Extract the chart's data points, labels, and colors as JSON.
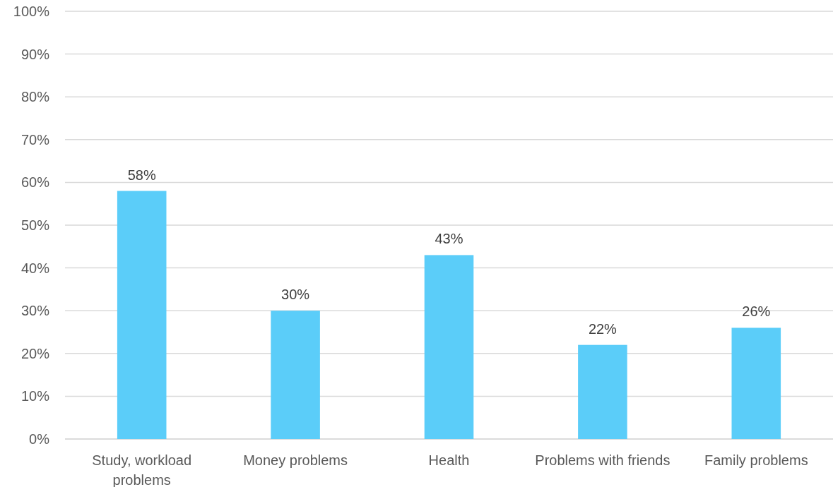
{
  "chart_data": {
    "type": "bar",
    "categories": [
      "Study, workload\nproblems",
      "Money problems",
      "Health",
      "Problems with friends",
      "Family problems"
    ],
    "values": [
      58,
      30,
      43,
      22,
      26
    ],
    "color": "#5bcdf9",
    "value_labels": [
      "58%",
      "30%",
      "43%",
      "22%",
      "26%"
    ],
    "ylim": [
      0,
      100
    ],
    "yticks": [
      {
        "value": 0,
        "label": "0%"
      },
      {
        "value": 10,
        "label": "10%"
      },
      {
        "value": 20,
        "label": "20%"
      },
      {
        "value": 30,
        "label": "30%"
      },
      {
        "value": 40,
        "label": "40%"
      },
      {
        "value": 50,
        "label": "50%"
      },
      {
        "value": 60,
        "label": "60%"
      },
      {
        "value": 70,
        "label": "70%"
      },
      {
        "value": 80,
        "label": "80%"
      },
      {
        "value": 90,
        "label": "90%"
      },
      {
        "value": 100,
        "label": "100%"
      }
    ],
    "grid": "y"
  }
}
